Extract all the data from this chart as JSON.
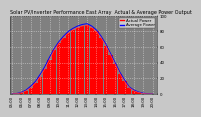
{
  "title": "Solar PV/Inverter Performance East Array  Actual & Average Power Output",
  "title_fontsize": 3.5,
  "bg_color": "#c8c8c8",
  "plot_bg_color": "#808080",
  "grid_color": "#ffffff",
  "bar_color": "#ff0000",
  "avg_line_color": "#0000ff",
  "actual_line_color": "#ff4444",
  "hours": [
    5.0,
    5.5,
    6.0,
    6.5,
    7.0,
    7.5,
    8.0,
    8.5,
    9.0,
    9.5,
    10.0,
    10.5,
    11.0,
    11.5,
    12.0,
    12.5,
    13.0,
    13.5,
    14.0,
    14.5,
    15.0,
    15.5,
    16.0,
    16.5,
    17.0,
    17.5,
    18.0,
    18.5,
    19.0,
    19.5,
    20.0
  ],
  "bar_values": [
    0,
    0.5,
    1.5,
    4,
    8,
    14,
    22,
    32,
    44,
    56,
    65,
    72,
    78,
    82,
    85,
    87,
    88,
    85,
    80,
    72,
    62,
    50,
    38,
    26,
    16,
    8,
    4,
    2,
    0.5,
    0.1,
    0
  ],
  "avg_values": [
    0,
    0.6,
    2,
    5,
    10,
    16,
    25,
    35,
    47,
    58,
    67,
    74,
    80,
    84,
    87,
    89,
    90,
    87,
    82,
    74,
    64,
    52,
    40,
    28,
    18,
    9,
    5,
    2.5,
    1,
    0.2,
    0
  ],
  "ylim": [
    0,
    100
  ],
  "xlim": [
    4.8,
    20.5
  ],
  "yticks": [
    0,
    20,
    40,
    60,
    80,
    100
  ],
  "ytick_labels": [
    "0",
    "20",
    "40",
    "60",
    "80",
    "100"
  ],
  "xtick_hours": [
    5,
    6,
    7,
    8,
    9,
    10,
    11,
    12,
    13,
    14,
    15,
    16,
    17,
    18,
    19,
    20
  ],
  "xtick_labels": [
    "05:00",
    "06:00",
    "07:00",
    "08:00",
    "09:00",
    "10:00",
    "11:00",
    "12:00",
    "13:00",
    "14:00",
    "15:00",
    "16:00",
    "17:00",
    "18:00",
    "19:00",
    "20:00"
  ],
  "tick_fontsize": 2.8,
  "legend_entries": [
    "Actual Power",
    "Average Power"
  ],
  "legend_colors": [
    "#ff0000",
    "#0000ff"
  ],
  "legend_fontsize": 2.8,
  "bar_width": 0.45
}
